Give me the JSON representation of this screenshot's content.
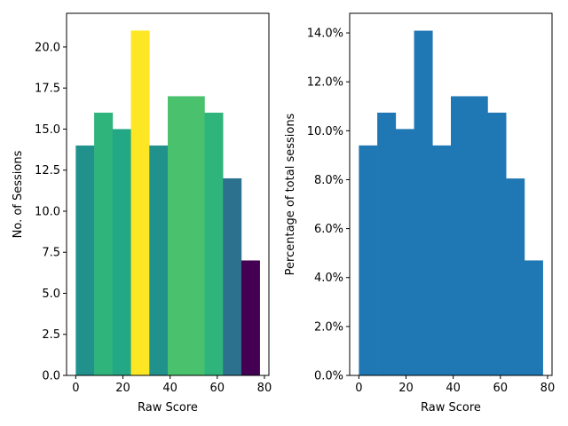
{
  "chart_data": [
    {
      "type": "bar",
      "subtype": "histogram",
      "xlabel": "Raw Score",
      "ylabel": "No. of Sessions",
      "bin_edges": [
        0,
        7.8,
        15.6,
        23.4,
        31.2,
        39,
        46.8,
        54.6,
        62.4,
        70.2,
        78
      ],
      "values": [
        14,
        16,
        15,
        21,
        14,
        17,
        17,
        16,
        12,
        7
      ],
      "colors": [
        "#21918c",
        "#2fb47c",
        "#22a884",
        "#fde725",
        "#21918c",
        "#4ac16d",
        "#4ac16d",
        "#2fb47c",
        "#2c728e",
        "#440154"
      ],
      "xlim": [
        -3.9,
        81.9
      ],
      "ylim": [
        0,
        22.05
      ],
      "xticks": [
        0,
        20,
        40,
        60,
        80
      ],
      "xtick_labels": [
        "0",
        "20",
        "40",
        "60",
        "80"
      ],
      "yticks": [
        0,
        2.5,
        5,
        7.5,
        10,
        12.5,
        15,
        17.5,
        20
      ],
      "ytick_labels": [
        "0.0",
        "2.5",
        "5.0",
        "7.5",
        "10.0",
        "12.5",
        "15.0",
        "17.5",
        "20.0"
      ],
      "grid": false
    },
    {
      "type": "bar",
      "subtype": "histogram",
      "xlabel": "Raw Score",
      "ylabel": "Percentage of total sessions",
      "bin_edges": [
        0,
        7.8,
        15.6,
        23.4,
        31.2,
        39,
        46.8,
        54.6,
        62.4,
        70.2,
        78
      ],
      "values": [
        0.094,
        0.1074,
        0.1007,
        0.1409,
        0.094,
        0.1141,
        0.1141,
        0.1074,
        0.0805,
        0.047
      ],
      "colors": [
        "#1f77b4",
        "#1f77b4",
        "#1f77b4",
        "#1f77b4",
        "#1f77b4",
        "#1f77b4",
        "#1f77b4",
        "#1f77b4",
        "#1f77b4",
        "#1f77b4"
      ],
      "xlim": [
        -3.9,
        81.9
      ],
      "ylim": [
        0,
        0.148
      ],
      "xticks": [
        0,
        20,
        40,
        60,
        80
      ],
      "xtick_labels": [
        "0",
        "20",
        "40",
        "60",
        "80"
      ],
      "yticks": [
        0,
        0.02,
        0.04,
        0.06,
        0.08,
        0.1,
        0.12,
        0.14
      ],
      "ytick_labels": [
        "0.0%",
        "2.0%",
        "4.0%",
        "6.0%",
        "8.0%",
        "10.0%",
        "12.0%",
        "14.0%"
      ],
      "grid": false
    }
  ]
}
